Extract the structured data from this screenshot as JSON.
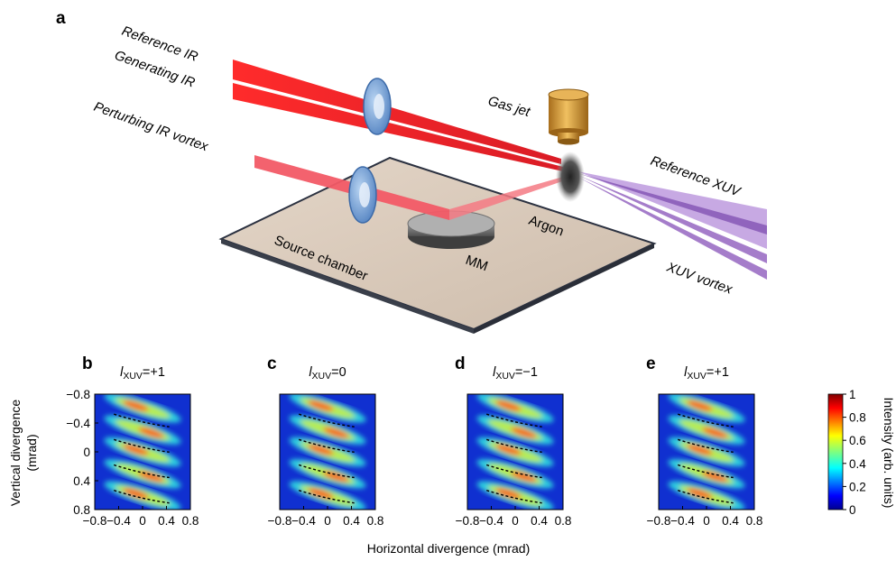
{
  "panel_a": {
    "letter": "a",
    "labels": {
      "reference_ir": "Reference IR",
      "generating_ir": "Generating IR",
      "perturbing_ir": "Perturbing IR vortex",
      "gas_jet": "Gas jet",
      "reference_xuv": "Reference XUV",
      "argon": "Argon",
      "mm": "MM",
      "source_chamber": "Source chamber",
      "xuv_vortex": "XUV vortex"
    },
    "colors": {
      "ir_beam": "#e8141c",
      "xuv_beam": "#9b6fc4",
      "plate": "#d8c8b8",
      "wave_plate": "#7fa7d8",
      "gas_jet": "#c8902e"
    }
  },
  "panels": [
    {
      "letter": "b",
      "title_symbol": "l",
      "title_sub": "XUV",
      "title_value": "=+1"
    },
    {
      "letter": "c",
      "title_symbol": "l",
      "title_sub": "XUV",
      "title_value": "=0"
    },
    {
      "letter": "d",
      "title_symbol": "l",
      "title_sub": "XUV",
      "title_value": "=−1"
    },
    {
      "letter": "e",
      "title_symbol": "l",
      "title_sub": "XUV",
      "title_value": "=+1"
    }
  ],
  "axes": {
    "x_ticks": [
      "−0.8",
      "−0.4",
      "0",
      "0.4",
      "0.8"
    ],
    "y_ticks": [
      "−0.8",
      "−0.4",
      "0",
      "0.4",
      "0.8"
    ],
    "xlabel": "Horizontal divergence (mrad)",
    "ylabel_line1": "Vertical divergence",
    "ylabel_line2": "(mrad)",
    "xlim": [
      -0.8,
      0.8
    ],
    "ylim": [
      -0.8,
      0.8
    ]
  },
  "colorbar": {
    "label": "Intensity (arb. units)",
    "ticks": [
      "1",
      "0.8",
      "0.6",
      "0.4",
      "0.2",
      "0"
    ],
    "range": [
      0,
      1
    ]
  }
}
